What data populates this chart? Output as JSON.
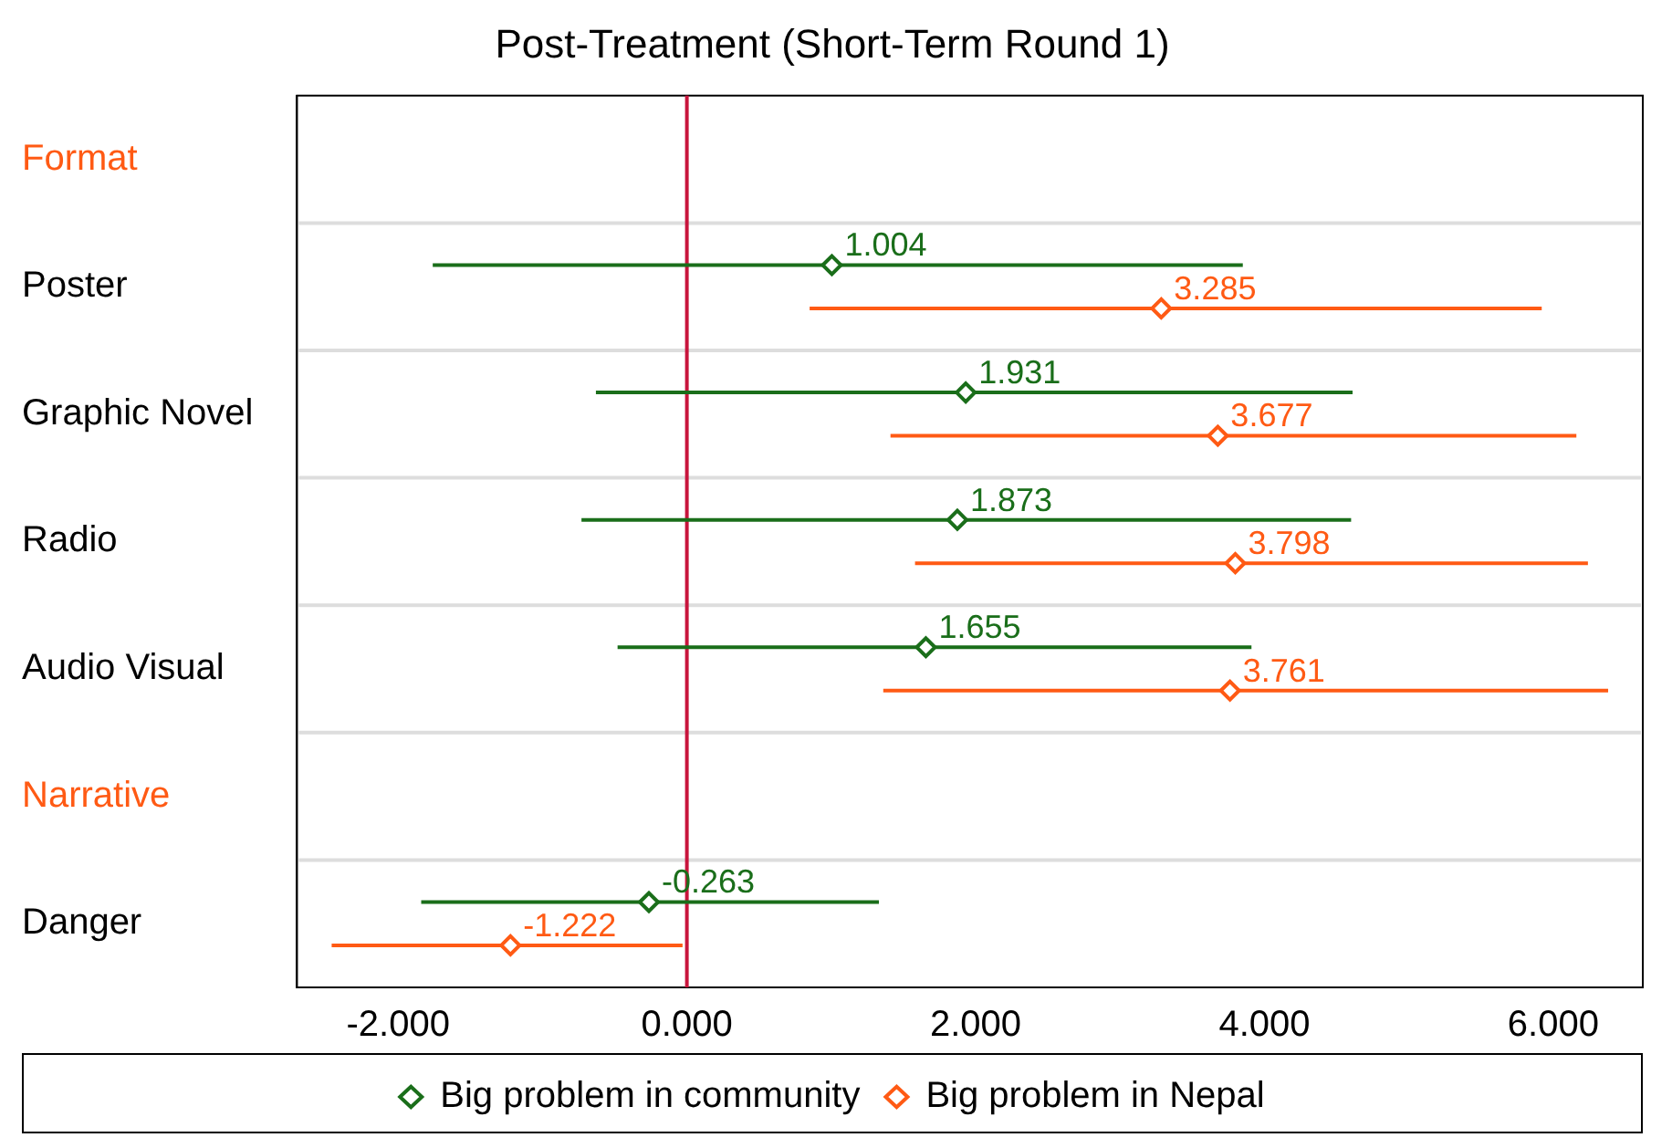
{
  "chart_data": {
    "type": "scatter",
    "orientation": "horizontal",
    "title": "Post-Treatment (Short-Term Round 1)",
    "categories": [
      "Format",
      "Poster",
      "Graphic Novel",
      "Radio",
      "Audio Visual",
      "Narrative",
      "Danger"
    ],
    "series": [
      {
        "name": "Big problem in community",
        "color": "#1a6e1a",
        "values": [
          null,
          1.004,
          1.931,
          1.873,
          1.655,
          null,
          -0.263
        ],
        "errors": [
          null,
          [
            -1.76,
            3.85
          ],
          [
            -0.63,
            4.61
          ],
          [
            -0.73,
            4.6
          ],
          [
            -0.48,
            3.91
          ],
          null,
          [
            -1.84,
            1.33
          ]
        ]
      },
      {
        "name": "Big problem in Nepal",
        "color": "#ff5a14",
        "values": [
          null,
          3.285,
          3.677,
          3.798,
          3.761,
          null,
          -1.222
        ],
        "errors": [
          null,
          [
            0.85,
            5.92
          ],
          [
            1.41,
            6.16
          ],
          [
            1.58,
            6.24
          ],
          [
            1.36,
            6.38
          ],
          null,
          [
            -2.46,
            -0.03
          ]
        ]
      }
    ],
    "xlim": [
      -2.7,
      6.62
    ],
    "xticks": [
      {
        "value": -2,
        "label": "-2.000"
      },
      {
        "value": 0,
        "label": "0.000"
      },
      {
        "value": 2,
        "label": "2.000"
      },
      {
        "value": 4,
        "label": "4.000"
      },
      {
        "value": 6,
        "label": "6.000"
      }
    ],
    "ref_lines": [
      {
        "axis": "x",
        "value": 0,
        "color": "#c8143c"
      }
    ],
    "grid": "y",
    "legend": "bottom",
    "marker": "diamond",
    "data_labels": true
  }
}
